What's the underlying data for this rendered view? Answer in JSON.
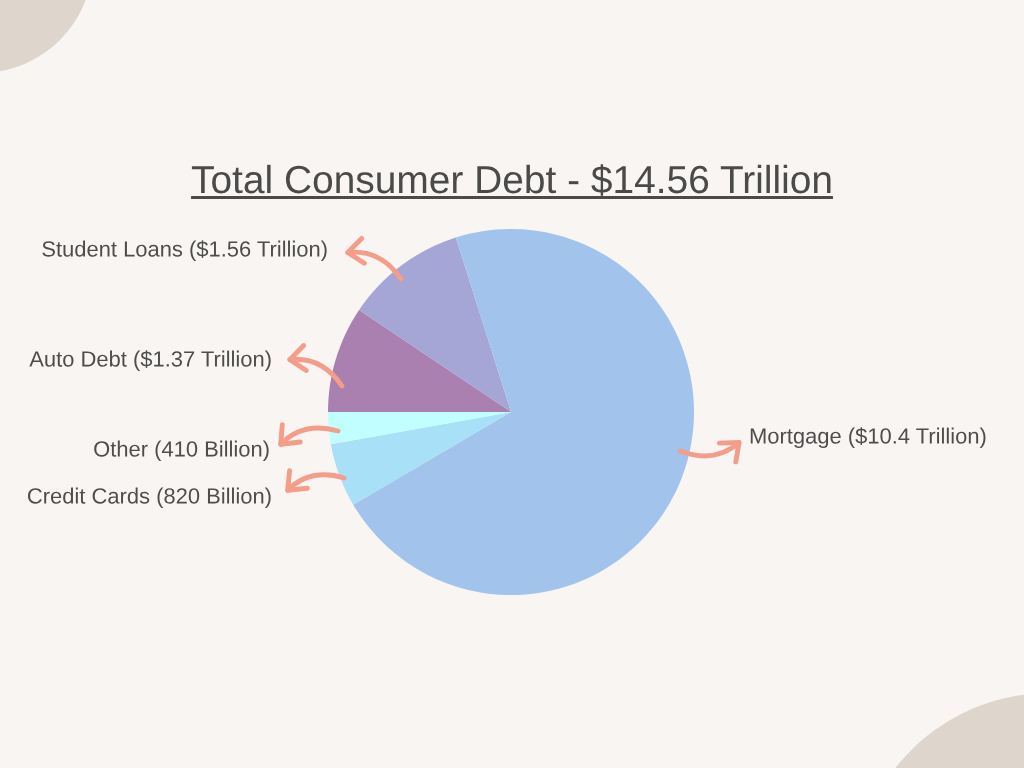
{
  "chart_data": {
    "type": "pie",
    "title": "Total Consumer Debt - $14.56 Trillion",
    "categories": [
      "Auto Debt ($1.37 Trillion)",
      "Student Loans ($1.56 Trillion)",
      "Mortgage ($10.4 Trillion)",
      "Credit Cards (820 Billion)",
      "Other (410 Billion)"
    ],
    "values": [
      1.37,
      1.56,
      10.4,
      0.82,
      0.41
    ],
    "colors": [
      "#a980b0",
      "#a5a5d6",
      "#a1c3ec",
      "#a8e0f8",
      "#c0feff"
    ]
  }
}
